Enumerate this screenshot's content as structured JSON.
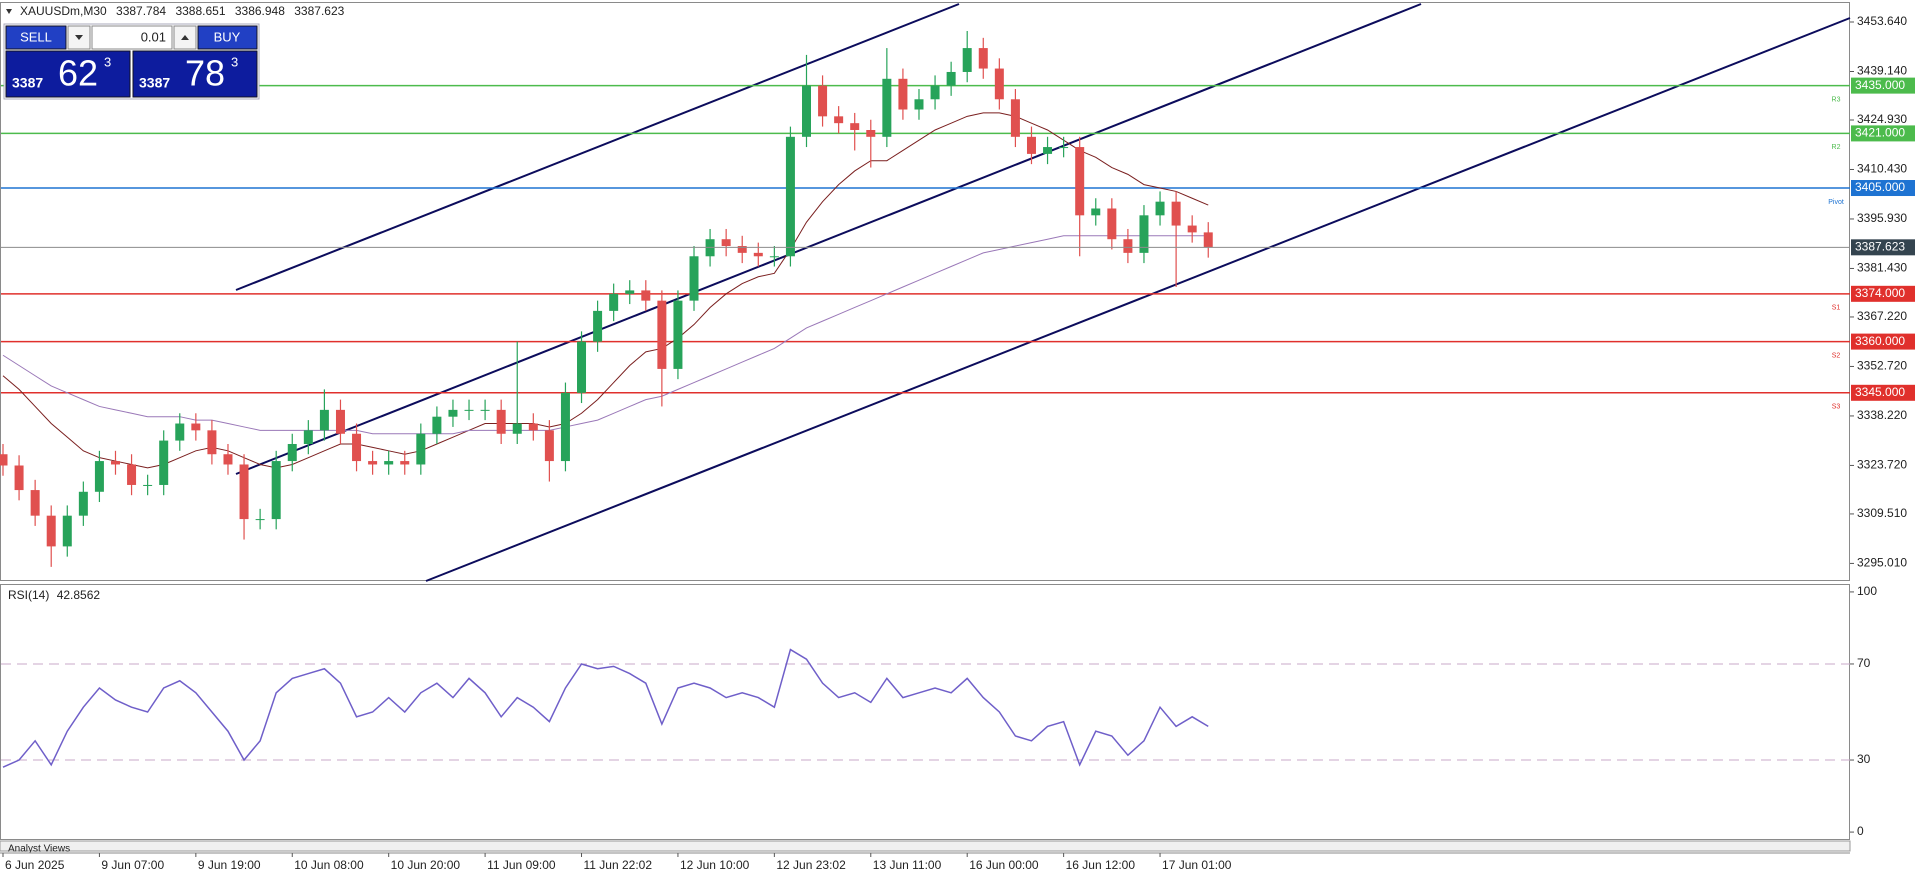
{
  "chart_data": [
    {
      "type": "candlestick",
      "title": "XAUUSDm,M30",
      "header_values": [
        3387.784,
        3388.651,
        3386.948,
        3387.623
      ],
      "categories": [
        "6 Jun 2025",
        null,
        null,
        null,
        null,
        null,
        "9 Jun 07:00",
        null,
        null,
        null,
        null,
        null,
        "9 Jun 19:00",
        null,
        null,
        null,
        null,
        null,
        "10 Jun 08:00",
        null,
        null,
        null,
        null,
        null,
        "10 Jun 20:00",
        null,
        null,
        null,
        null,
        null,
        "11 Jun 09:00",
        null,
        null,
        null,
        null,
        null,
        "11 Jun 22:02",
        null,
        null,
        null,
        null,
        null,
        "12 Jun 10:00",
        null,
        null,
        null,
        null,
        null,
        "12 Jun 23:02",
        null,
        null,
        null,
        null,
        null,
        "13 Jun 11:00",
        null,
        null,
        null,
        null,
        null,
        "16 Jun 00:00",
        null,
        null,
        null,
        null,
        null,
        "16 Jun 12:00",
        null,
        null,
        null,
        null,
        null,
        "17 Jun 01:00",
        null,
        null,
        null
      ],
      "open": [
        3327,
        3323.7,
        3316.5,
        3309,
        3300,
        3309,
        3316,
        3325,
        3324,
        3318,
        3318,
        3331,
        3336,
        3334,
        3327,
        3324,
        3308,
        3308,
        3325,
        3330,
        3334,
        3340,
        3333,
        3325,
        3324,
        3325,
        3324,
        3333,
        3338,
        3340,
        3340,
        3340,
        3333,
        3336,
        3334,
        3325,
        3345,
        3360,
        3369,
        3374,
        3375,
        3372,
        3352,
        3372,
        3385,
        3390,
        3388,
        3386,
        3385,
        3385,
        3420,
        3435,
        3426,
        3424,
        3422,
        3420,
        3437,
        3428,
        3431,
        3435,
        3439,
        3446,
        3440,
        3431,
        3420,
        3415,
        3417,
        3417,
        3397,
        3399,
        3390,
        3386,
        3397,
        3401,
        3394,
        3392
      ],
      "high": [
        3330,
        3326.7,
        3319.5,
        3312,
        3312,
        3319,
        3328,
        3328,
        3327,
        3321,
        3334,
        3339,
        3339,
        3337,
        3330,
        3327,
        3311,
        3328,
        3333,
        3337,
        3346,
        3343,
        3336,
        3328,
        3328,
        3328,
        3336,
        3341,
        3343,
        3343,
        3343,
        3343,
        3360,
        3339,
        3337,
        3348,
        3363,
        3372,
        3377,
        3378,
        3378,
        3375,
        3375,
        3388,
        3393,
        3393,
        3391,
        3389,
        3388,
        3423,
        3444,
        3438,
        3429,
        3427,
        3425,
        3446,
        3440,
        3434,
        3438,
        3442,
        3451,
        3449,
        3443,
        3434,
        3423,
        3420,
        3420,
        3420,
        3402,
        3402,
        3393,
        3400,
        3404,
        3404,
        3397,
        3395
      ],
      "low": [
        3320.7,
        3313.5,
        3306,
        3294,
        3297,
        3306,
        3313,
        3321,
        3315,
        3315,
        3315,
        3328,
        3331,
        3324,
        3321,
        3302,
        3305,
        3305,
        3322,
        3327,
        3331,
        3330,
        3322,
        3321,
        3321,
        3321,
        3321,
        3330,
        3335,
        3337,
        3337,
        3330,
        3330,
        3331,
        3319,
        3322,
        3342,
        3357,
        3366,
        3371,
        3369,
        3341,
        3349,
        3369,
        3382,
        3385,
        3383,
        3382,
        3382,
        3382,
        3417,
        3423,
        3421,
        3416,
        3411,
        3417,
        3425,
        3425,
        3428,
        3432,
        3436,
        3437,
        3428,
        3417,
        3412,
        3412,
        3414,
        3385,
        3394,
        3387,
        3383,
        3383,
        3394,
        3376,
        3389,
        3384.6
      ],
      "close": [
        3323.7,
        3316.5,
        3309,
        3300,
        3309,
        3316,
        3325,
        3324,
        3318,
        3318,
        3331,
        3336,
        3334,
        3327,
        3324,
        3308,
        3308,
        3325,
        3330,
        3334,
        3340,
        3333,
        3325,
        3324,
        3325,
        3324,
        3333,
        3338,
        3340,
        3340,
        3340,
        3333,
        3336,
        3334,
        3325,
        3345,
        3360,
        3369,
        3374,
        3375,
        3372,
        3352,
        3372,
        3385,
        3390,
        3388,
        3386,
        3385,
        3385,
        3420,
        3435,
        3426,
        3424,
        3422,
        3420,
        3437,
        3428,
        3431,
        3435,
        3439,
        3446,
        3440,
        3431,
        3420,
        3415,
        3417,
        3417,
        3397,
        3399,
        3390,
        3386,
        3397,
        3401,
        3394,
        3392,
        3387.6
      ],
      "up_color": "#27a35a",
      "down_color": "#e0504f",
      "moving_averages": [
        {
          "color": "#7a1f1f",
          "values": [
            3350,
            3346,
            3341,
            3336,
            3332,
            3328,
            3326,
            3325,
            3324,
            3323,
            3324,
            3326,
            3328,
            3329,
            3328,
            3326,
            3324,
            3323,
            3324,
            3326,
            3328,
            3330,
            3330,
            3329,
            3328,
            3327,
            3328,
            3330,
            3332,
            3334,
            3336,
            3336,
            3336,
            3336,
            3335,
            3336,
            3339,
            3343,
            3348,
            3353,
            3357,
            3358,
            3361,
            3365,
            3370,
            3374,
            3377,
            3379,
            3380,
            3387,
            3395,
            3401,
            3406,
            3410,
            3413,
            3413,
            3416,
            3419,
            3422,
            3424,
            3426,
            3427,
            3427,
            3426,
            3424,
            3422,
            3419,
            3416,
            3414,
            3411,
            3409,
            3406,
            3405,
            3404,
            3402,
            3400
          ]
        },
        {
          "color": "#9a78b8",
          "values": [
            3356,
            3353,
            3350,
            3347,
            3345,
            3343,
            3341,
            3340,
            3339,
            3338,
            3338,
            3338,
            3337,
            3337,
            3336,
            3335,
            3334,
            3334,
            3334,
            3334,
            3334,
            3334,
            3334,
            3333,
            3333,
            3333,
            3333,
            3333,
            3333,
            3334,
            3334,
            3334,
            3334,
            3334,
            3334,
            3335,
            3336,
            3337,
            3339,
            3341,
            3343,
            3344,
            3346,
            3348,
            3350,
            3352,
            3354,
            3356,
            3358,
            3361,
            3364,
            3366,
            3368,
            3370,
            3372,
            3374,
            3376,
            3378,
            3380,
            3382,
            3384,
            3386,
            3387,
            3388,
            3389,
            3390,
            3391,
            3391,
            3391,
            3391,
            3391,
            3391,
            3391,
            3391,
            3391,
            3391
          ]
        }
      ],
      "levels": [
        {
          "name": "R3",
          "value": 3435,
          "label": "3435.000",
          "color": "#4cbb4c"
        },
        {
          "name": "R2",
          "value": 3421,
          "label": "3421.000",
          "color": "#4cbb4c"
        },
        {
          "name": "Pivot",
          "value": 3405,
          "label": "3405.000",
          "color": "#1e73d2"
        },
        {
          "name": "S1",
          "value": 3374,
          "label": "3374.000",
          "color": "#e0302c"
        },
        {
          "name": "S2",
          "value": 3360,
          "label": "3360.000",
          "color": "#e0302c"
        },
        {
          "name": "S3",
          "value": 3345,
          "label": "3345.000",
          "color": "#e0302c"
        }
      ],
      "current_price": 3387.623,
      "current_color": "#34444f",
      "ylim": [
        3289.86,
        3459.5
      ],
      "yticks": [
        {
          "value": 3453.64,
          "label": "3453.640"
        },
        {
          "value": 3439.14,
          "label": "3439.140"
        },
        {
          "value": 3424.93,
          "label": "3424.930"
        },
        {
          "value": 3410.43,
          "label": "3410.430"
        },
        {
          "value": 3395.93,
          "label": "3395.930"
        },
        {
          "value": 3381.43,
          "label": "3381.430"
        },
        {
          "value": 3367.22,
          "label": "3367.220"
        },
        {
          "value": 3352.72,
          "label": "3352.720"
        },
        {
          "value": 3338.22,
          "label": "3338.220"
        },
        {
          "value": 3323.72,
          "label": "3323.720"
        },
        {
          "value": 3309.51,
          "label": "3309.510"
        },
        {
          "value": 3295.01,
          "label": "3295.010"
        }
      ],
      "grid": false
    },
    {
      "type": "line",
      "indicator": "RSI(14)",
      "last": 42.8562,
      "color": "#6f5fc9",
      "values": [
        27,
        30,
        38,
        28,
        42,
        52,
        60,
        55,
        52,
        50,
        60,
        63,
        58,
        50,
        42,
        30,
        38,
        58,
        64,
        66,
        68,
        62,
        48,
        50,
        56,
        50,
        58,
        62,
        56,
        64,
        58,
        48,
        56,
        52,
        46,
        60,
        70,
        68,
        69,
        66,
        62,
        45,
        60,
        62,
        60,
        56,
        58,
        56,
        52,
        76,
        72,
        62,
        56,
        58,
        54,
        64,
        56,
        58,
        60,
        58,
        64,
        56,
        50,
        40,
        38,
        44,
        46,
        28,
        42,
        40,
        32,
        38,
        52,
        44,
        48,
        44
      ],
      "ylim": [
        -3.3,
        103.3
      ],
      "yticks": [
        100,
        70,
        30,
        0
      ],
      "levels": [
        70,
        30
      ],
      "level_color": "#c9a9c9"
    }
  ],
  "trade_panel": {
    "sell_label": "SELL",
    "buy_label": "BUY",
    "volume": "0.01",
    "sell": {
      "big": "3387",
      "pips": "62",
      "point": "3"
    },
    "buy": {
      "big": "3387",
      "pips": "78",
      "point": "3"
    }
  },
  "footer_tab": "Analyst Views"
}
